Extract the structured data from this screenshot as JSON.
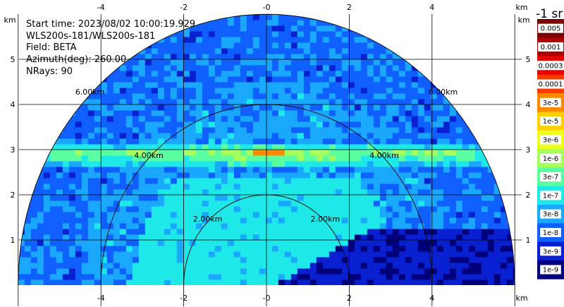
{
  "info": {
    "start_time": "Start time: 2023/08/02 10:00:19.929",
    "instrument": "WLS200s-181/WLS200s-181",
    "field": "Field: BETA",
    "azimuth": "Azimuth(deg): 260.00",
    "nrays": "NRays: 90"
  },
  "chart_data": {
    "type": "heatmap",
    "subtype": "RHI lidar scan (half-disc)",
    "x_tick_labels": [
      "-4",
      "-2",
      "-0",
      "2",
      "4"
    ],
    "x_ticks": [
      -4,
      -2,
      0,
      2,
      4
    ],
    "y_tick_labels": [
      "1",
      "2",
      "3",
      "4",
      "5"
    ],
    "y_ticks": [
      1,
      2,
      3,
      4,
      5
    ],
    "axis_unit": "km",
    "xlim": [
      -6,
      6
    ],
    "ylim": [
      0,
      5.9
    ],
    "grid": true,
    "range_rings_km": [
      2,
      4,
      6
    ],
    "range_ring_labels": [
      "2.00km",
      "4.00km",
      "6.00km"
    ],
    "max_range_km": 6,
    "features": {
      "aerosol_layer_height_km": 2.9,
      "aerosol_layer_color": "#c8ff28",
      "peak_color": "#ff2800",
      "near_field_color": "#22e6e6",
      "background_color": "#1e8cf0",
      "low_signal_color": "#0828c8"
    },
    "colorbar": {
      "title": "-1 sr",
      "labels": [
        "0.005",
        "0.001",
        "0.0003",
        "0.0001",
        "3e-5",
        "1e-5",
        "3e-6",
        "1e-6",
        "3e-7",
        "1e-7",
        "3e-8",
        "1e-8",
        "3e-9",
        "1e-9"
      ],
      "colors": [
        "#7a0000",
        "#b00000",
        "#e80000",
        "#ff3a00",
        "#ff8a00",
        "#ffd000",
        "#ecff20",
        "#a6ff5a",
        "#5affa0",
        "#1ee8e8",
        "#1aa8ff",
        "#1060ff",
        "#0820d0",
        "#00007a"
      ]
    }
  }
}
